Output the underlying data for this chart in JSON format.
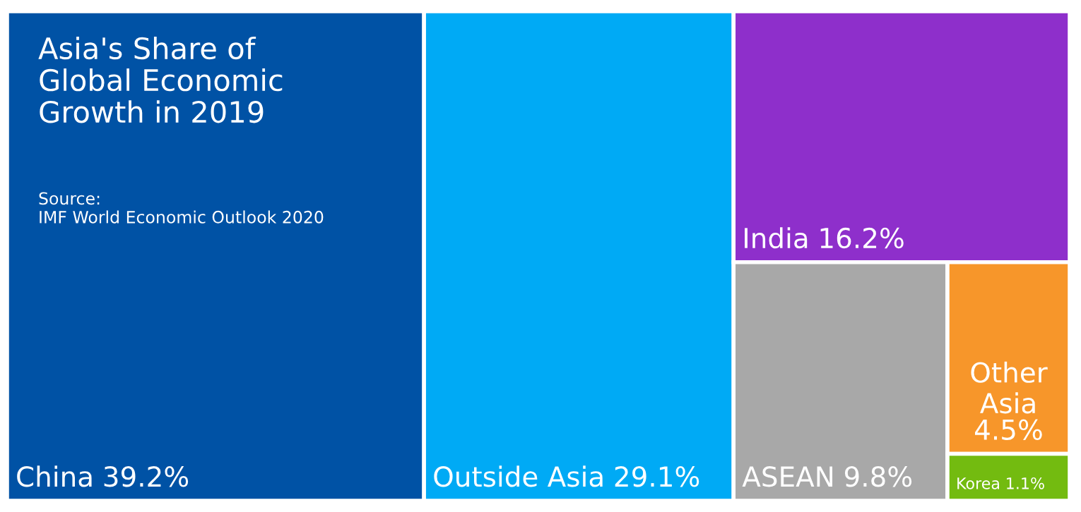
{
  "chart_data": {
    "type": "other",
    "title": "Asia's Share of\nGlobal Economic\nGrowth in 2019",
    "annotations": [
      "Source:\nIMF World Economic Outlook 2020"
    ],
    "categories": [
      "China",
      "Outside Asia",
      "India",
      "ASEAN",
      "Other Asia",
      "Korea"
    ],
    "values": [
      39.2,
      29.1,
      16.2,
      9.8,
      4.5,
      1.1
    ],
    "colors": [
      "#0052a5",
      "#00aaf5",
      "#8e2fcb",
      "#a8a8a8",
      "#f7962a",
      "#73bb10"
    ],
    "value_labels": [
      "39.2%",
      "29.1%",
      "16.2%",
      "9.8%",
      "4.5%",
      "1.1%"
    ]
  }
}
